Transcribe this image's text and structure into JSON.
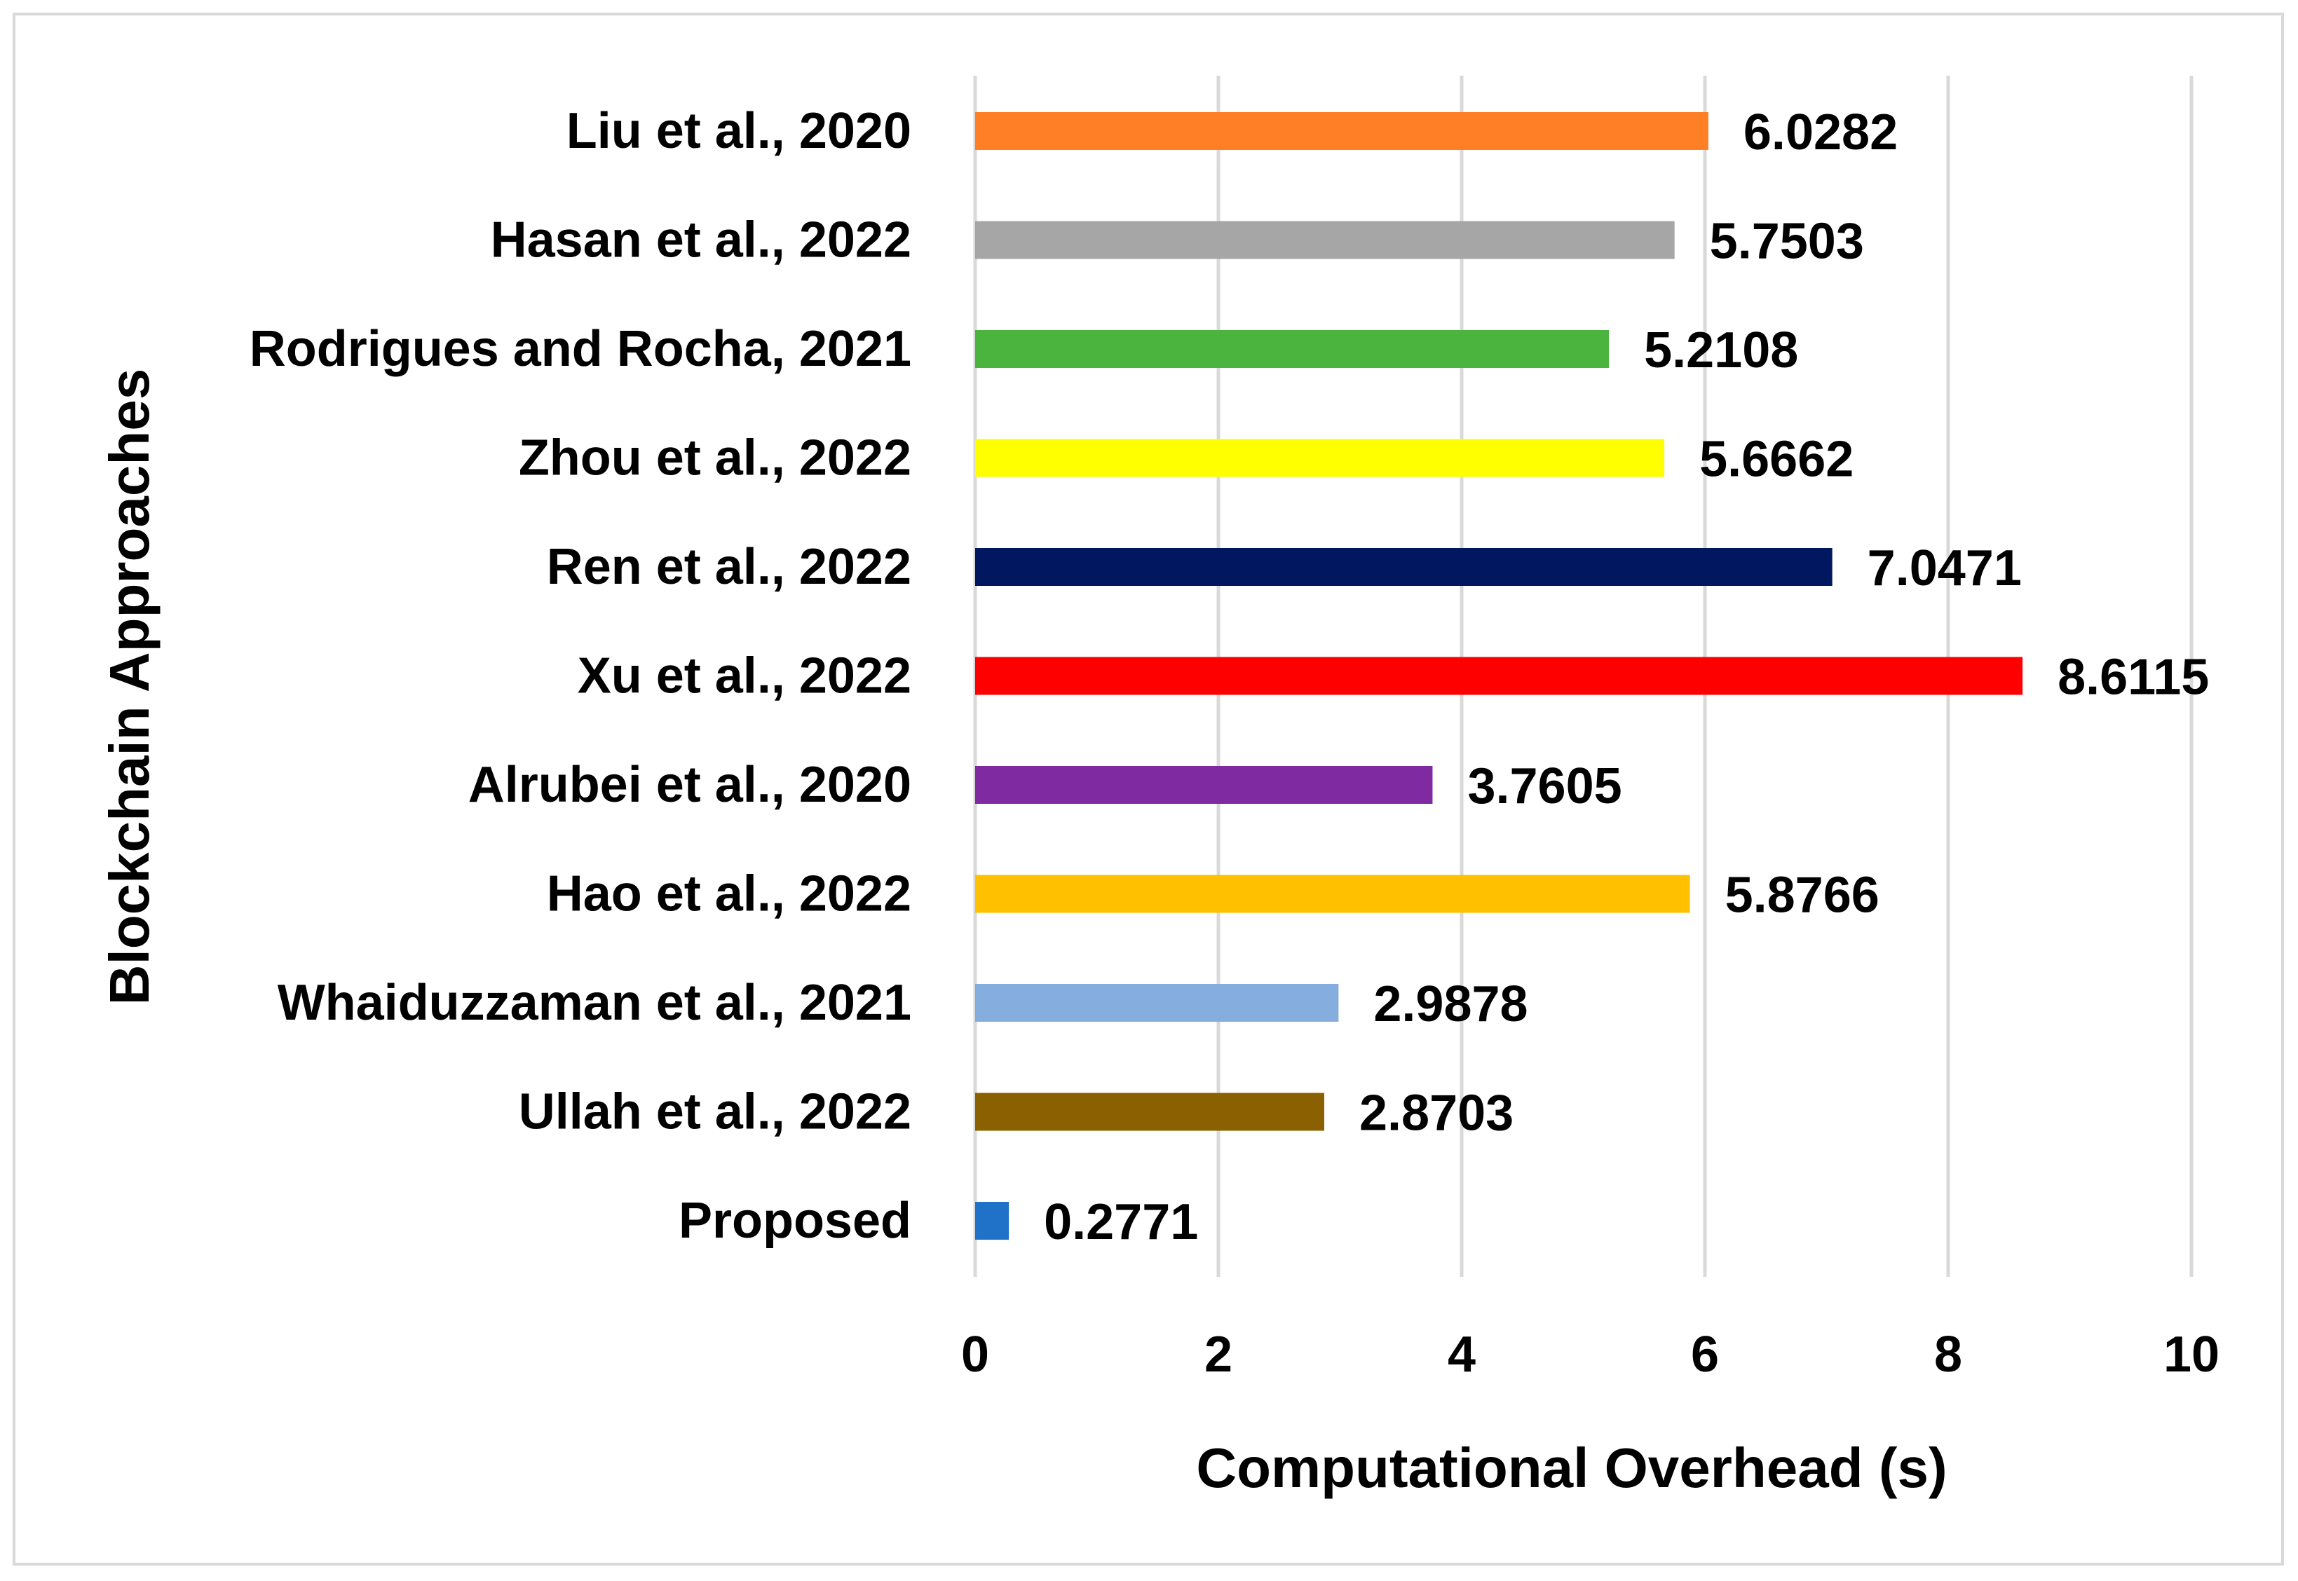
{
  "chart_data": {
    "type": "bar",
    "orientation": "horizontal",
    "title": "",
    "xlabel": "Computational Overhead (s)",
    "ylabel": "Blockchain Approaches",
    "xlim": [
      0,
      10
    ],
    "xticks": [
      0,
      2,
      4,
      6,
      8,
      10
    ],
    "tick_labels": [
      "0",
      "2",
      "4",
      "6",
      "8",
      "10"
    ],
    "grid": "vertical",
    "legend": "none",
    "categories": [
      "Liu et al., 2020",
      "Hasan et al., 2022",
      "Rodrigues and Rocha, 2021",
      "Zhou et al., 2022",
      "Ren et al., 2022",
      "Xu et al., 2022",
      "Alrubei et al., 2020",
      "Hao et al., 2022",
      "Whaiduzzaman et al., 2021",
      "Ullah et al., 2022",
      "Proposed"
    ],
    "values": [
      6.0282,
      5.7503,
      5.2108,
      5.6662,
      7.0471,
      8.6115,
      3.7605,
      5.8766,
      2.9878,
      2.8703,
      0.2771
    ],
    "value_labels": [
      "6.0282",
      "5.7503",
      "5.2108",
      "5.6662",
      "7.0471",
      "8.6115",
      "3.7605",
      "5.8766",
      "2.9878",
      "2.8703",
      "0.2771"
    ],
    "colors": [
      "#FF7F27",
      "#A6A6A6",
      "#4AB43F",
      "#FFFF00",
      "#011860",
      "#FF0000",
      "#7F2AA0",
      "#FFC000",
      "#85AEDF",
      "#8B6000",
      "#1F72C7"
    ]
  }
}
